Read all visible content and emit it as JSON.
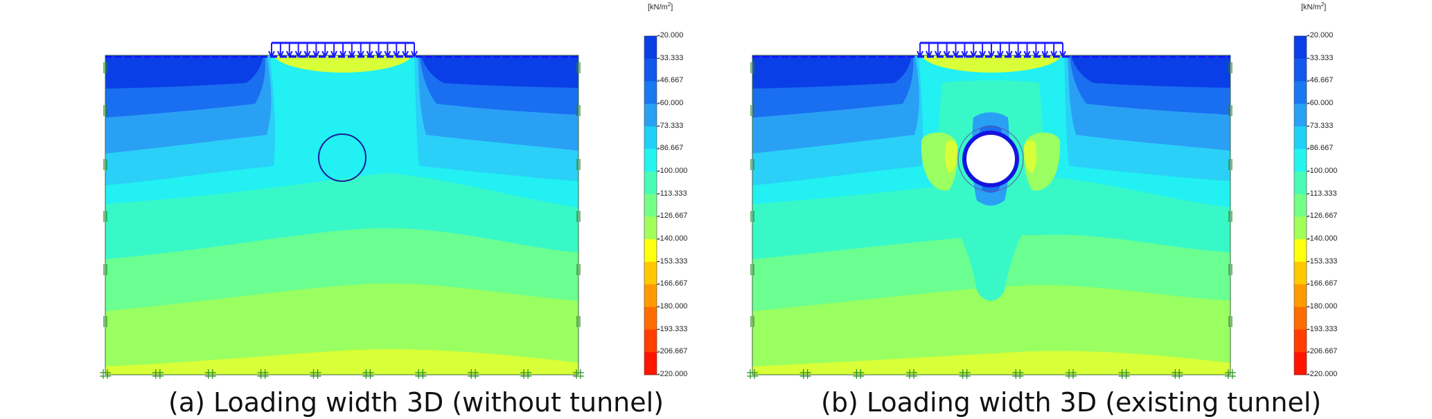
{
  "panels": [
    {
      "caption": "(a) Loading width 3D (without tunnel)",
      "tunnel": "outline",
      "legend": {
        "unit": "[kN/m",
        "unit_sup": "2",
        "unit_close": "]",
        "ticks": [
          "-20.000",
          "-33.333",
          "-46.667",
          "-60.000",
          "-73.333",
          "-86.667",
          "-100.000",
          "-113.333",
          "-126.667",
          "-140.000",
          "-153.333",
          "-166.667",
          "-180.000",
          "-193.333",
          "-206.667",
          "-220.000"
        ]
      }
    },
    {
      "caption": "(b) Loading width 3D (existing tunnel)",
      "tunnel": "excavated",
      "legend": {
        "unit": "[kN/m",
        "unit_sup": "2",
        "unit_close": "]",
        "ticks": [
          "-20.000",
          "-33.333",
          "-46.667",
          "-60.000",
          "-73.333",
          "-86.667",
          "-100.000",
          "-113.333",
          "-126.667",
          "-140.000",
          "-153.333",
          "-166.667",
          "-180.000",
          "-193.333",
          "-206.667",
          "-220.000"
        ]
      }
    }
  ],
  "colors": {
    "c1": "#0a3ee6",
    "c2": "#1a6ef0",
    "c3": "#2aa0f5",
    "c4": "#2ad0f8",
    "c5": "#22f0f2",
    "c6": "#38f8c8",
    "c7": "#6aff90",
    "c8": "#9aff60",
    "c9": "#d8ff38",
    "scale": [
      "#0a3ee6",
      "#1258ec",
      "#1a78f0",
      "#28a0f4",
      "#20d0f6",
      "#24f4ee",
      "#48fcb6",
      "#74ff86",
      "#a2ff5a",
      "#ffff10",
      "#ffc800",
      "#ff9a00",
      "#ff6c00",
      "#ff3e00",
      "#ff1400",
      "#ff0000"
    ],
    "load": "#1a1aff",
    "boundary": "#1e8a1e",
    "tunnel_ring": "#1414e0"
  }
}
